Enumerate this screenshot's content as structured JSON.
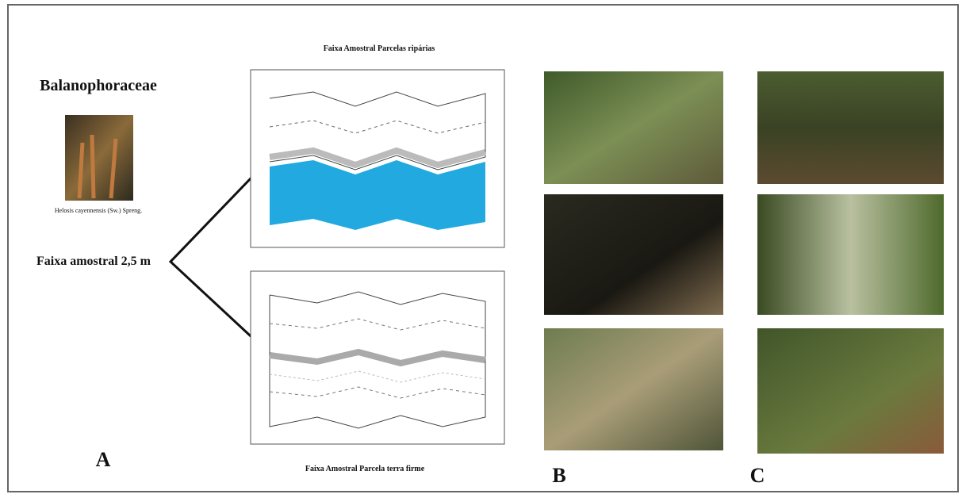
{
  "panel_a": {
    "family": "Balanophoraceae",
    "species": "Helosis cayennensis (Sw.) Spreng.",
    "strip_label": "Faixa amostral 2,5 m",
    "riparian_title": "Faixa Amostral Parcelas ripárias",
    "upland_title": "Faixa Amostral Parcela terra firme",
    "label": "A"
  },
  "panel_b": {
    "label": "B"
  },
  "panel_c": {
    "label": "C"
  }
}
